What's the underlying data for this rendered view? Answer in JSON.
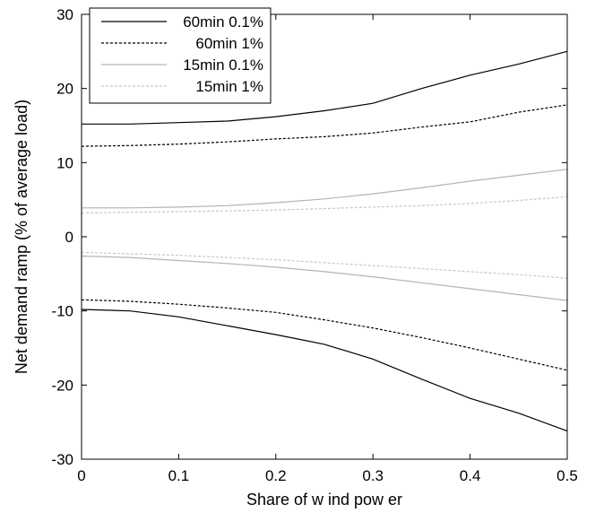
{
  "chart_data": {
    "type": "line",
    "title": "",
    "xlabel": "Share of w ind pow er",
    "ylabel": "Net demand ramp (% of average load)",
    "xlim": [
      0,
      0.5
    ],
    "ylim": [
      -30,
      30
    ],
    "xticks": [
      0,
      0.1,
      0.2,
      0.3,
      0.4,
      0.5
    ],
    "xtick_labels": [
      "0",
      "0.1",
      "0.2",
      "0.3",
      "0.4",
      "0.5"
    ],
    "yticks": [
      -30,
      -20,
      -10,
      0,
      10,
      20,
      30
    ],
    "ytick_labels": [
      "-30",
      "-20",
      "-10",
      "0",
      "10",
      "20",
      "30"
    ],
    "grid": false,
    "legend_position": "top-left",
    "x": [
      0,
      0.05,
      0.1,
      0.15,
      0.2,
      0.25,
      0.3,
      0.35,
      0.4,
      0.45,
      0.5
    ],
    "series": [
      {
        "name": "60min 0.1%",
        "color": "#000000",
        "dash": "solid",
        "upper": [
          15.2,
          15.2,
          15.4,
          15.6,
          16.2,
          17.0,
          18.0,
          20.0,
          21.8,
          23.3,
          25.0
        ],
        "lower": [
          -9.8,
          -10.0,
          -10.8,
          -12.0,
          -13.2,
          -14.5,
          -16.5,
          -19.2,
          -21.8,
          -23.8,
          -26.2
        ]
      },
      {
        "name": "60min 1%",
        "color": "#000000",
        "dash": "dashed",
        "upper": [
          12.2,
          12.3,
          12.5,
          12.8,
          13.2,
          13.5,
          14.0,
          14.8,
          15.5,
          16.8,
          17.8
        ],
        "lower": [
          -8.5,
          -8.7,
          -9.1,
          -9.6,
          -10.2,
          -11.2,
          -12.3,
          -13.6,
          -15.0,
          -16.5,
          -18.0
        ]
      },
      {
        "name": "15min 0.1%",
        "color": "#b4b4b4",
        "dash": "solid",
        "upper": [
          3.9,
          3.9,
          4.0,
          4.2,
          4.6,
          5.1,
          5.8,
          6.6,
          7.5,
          8.3,
          9.1
        ],
        "lower": [
          -2.6,
          -2.8,
          -3.2,
          -3.6,
          -4.1,
          -4.7,
          -5.4,
          -6.2,
          -7.0,
          -7.8,
          -8.6
        ]
      },
      {
        "name": "15min 1%",
        "color": "#c8c8c8",
        "dash": "dashed",
        "upper": [
          3.2,
          3.3,
          3.4,
          3.5,
          3.6,
          3.8,
          4.0,
          4.2,
          4.5,
          4.9,
          5.4
        ],
        "lower": [
          -2.1,
          -2.3,
          -2.5,
          -2.8,
          -3.1,
          -3.5,
          -3.9,
          -4.3,
          -4.7,
          -5.1,
          -5.6
        ]
      }
    ]
  }
}
